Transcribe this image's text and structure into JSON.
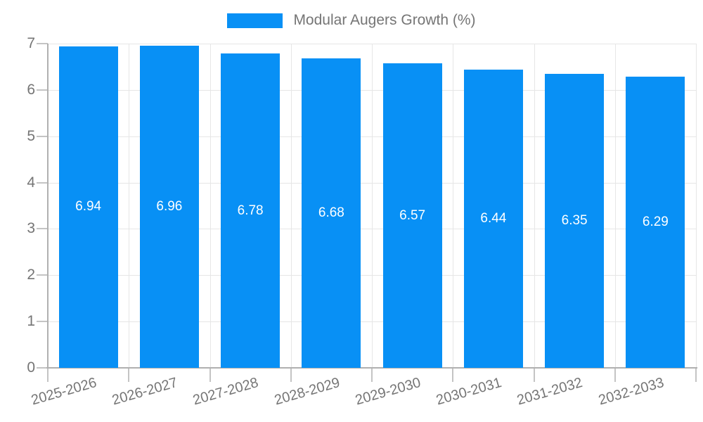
{
  "chart_data": {
    "type": "bar",
    "title": "",
    "legend": "Modular Augers Growth (%)",
    "legend_position": "top",
    "categories": [
      "2025-2026",
      "2026-2027",
      "2027-2028",
      "2028-2029",
      "2029-2030",
      "2030-2031",
      "2031-2032",
      "2032-2033"
    ],
    "values": [
      6.94,
      6.96,
      6.78,
      6.68,
      6.57,
      6.44,
      6.35,
      6.29
    ],
    "value_labels": [
      "6.94",
      "6.96",
      "6.78",
      "6.68",
      "6.57",
      "6.44",
      "6.35",
      "6.29"
    ],
    "xlabel": "",
    "ylabel": "",
    "ylim": [
      0,
      7
    ],
    "yticks": [
      0,
      1,
      2,
      3,
      4,
      5,
      6,
      7
    ],
    "grid": true,
    "colors": {
      "bar": "#0890f5",
      "grid": "#e6e6e6",
      "axis": "#b0b0b0",
      "tick": "#c4c4c4",
      "tick_label": "#757575",
      "value_label": "#ffffff",
      "background": "#ffffff"
    }
  }
}
